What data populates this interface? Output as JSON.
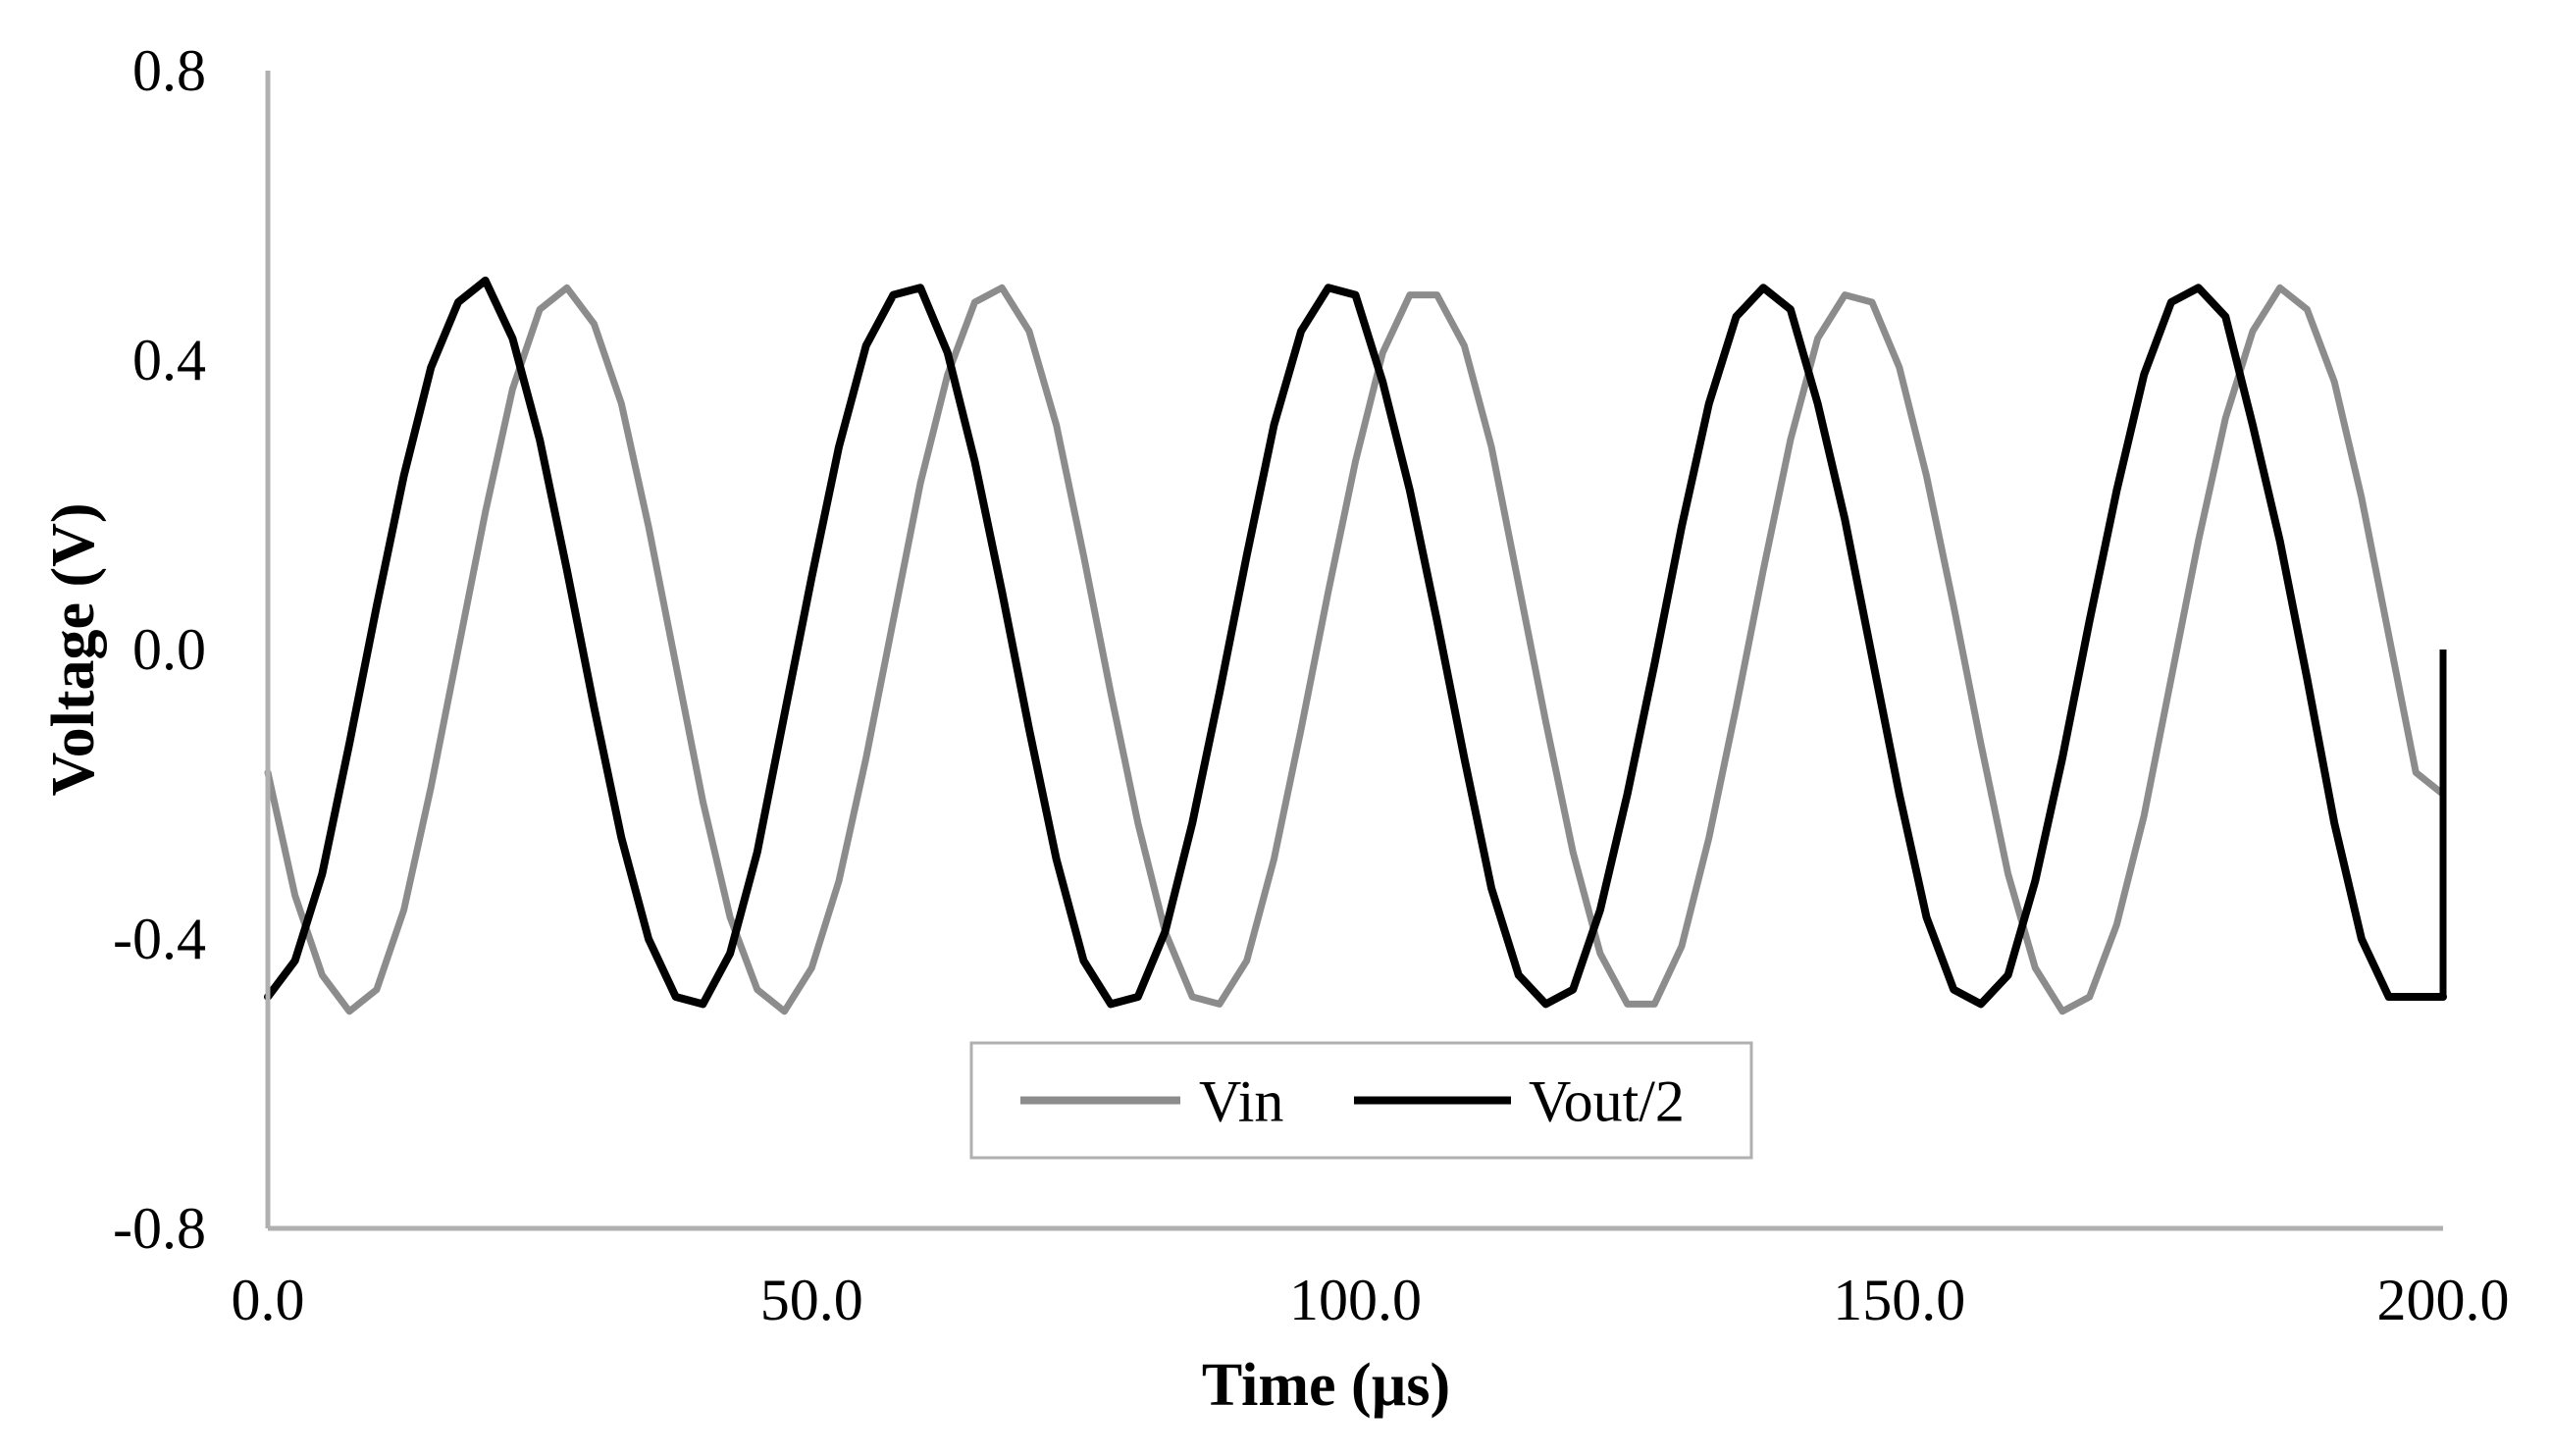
{
  "chart_data": {
    "type": "line",
    "title": "",
    "xlabel": "Time (µs)",
    "ylabel": "Voltage (V)",
    "xlim": [
      0,
      200
    ],
    "ylim": [
      -0.8,
      0.8
    ],
    "x_ticks": [
      0,
      50,
      100,
      150,
      200
    ],
    "x_tick_labels": [
      "0.0",
      "50.0",
      "100.0",
      "150.0",
      "200.0"
    ],
    "y_ticks": [
      -0.8,
      -0.4,
      0.0,
      0.4,
      0.8
    ],
    "y_tick_labels": [
      "-0.8",
      "-0.4",
      "0.0",
      "0.4",
      "0.8"
    ],
    "grid": false,
    "legend_position": "bottom-center",
    "x": [
      0,
      2.5,
      5,
      7.5,
      10,
      12.5,
      15,
      17.5,
      20,
      22.5,
      25,
      27.5,
      30,
      32.5,
      35,
      37.5,
      40,
      42.5,
      45,
      47.5,
      50,
      52.5,
      55,
      57.5,
      60,
      62.5,
      65,
      67.5,
      70,
      72.5,
      75,
      77.5,
      80,
      82.5,
      85,
      87.5,
      90,
      92.5,
      95,
      97.5,
      100,
      102.5,
      105,
      107.5,
      110,
      112.5,
      115,
      117.5,
      120,
      122.5,
      125,
      127.5,
      130,
      132.5,
      135,
      137.5,
      140,
      142.5,
      145,
      147.5,
      150,
      152.5,
      155,
      157.5,
      160,
      162.5,
      165,
      167.5,
      170,
      172.5,
      175,
      177.5,
      180,
      182.5,
      185,
      187.5,
      190,
      192.5,
      195,
      197.5,
      200
    ],
    "series": [
      {
        "name": "Vin",
        "color": "#8c8c8c",
        "values": [
          -0.17,
          -0.34,
          -0.45,
          -0.5,
          -0.47,
          -0.36,
          -0.19,
          0.0,
          0.19,
          0.36,
          0.47,
          0.5,
          0.45,
          0.34,
          0.17,
          -0.02,
          -0.21,
          -0.37,
          -0.47,
          -0.5,
          -0.44,
          -0.32,
          -0.15,
          0.04,
          0.23,
          0.38,
          0.48,
          0.5,
          0.44,
          0.31,
          0.13,
          -0.06,
          -0.24,
          -0.39,
          -0.48,
          -0.49,
          -0.43,
          -0.29,
          -0.11,
          0.08,
          0.26,
          0.41,
          0.49,
          0.49,
          0.42,
          0.28,
          0.09,
          -0.1,
          -0.28,
          -0.42,
          -0.49,
          -0.49,
          -0.41,
          -0.26,
          -0.08,
          0.11,
          0.29,
          0.43,
          0.49,
          0.48,
          0.39,
          0.24,
          0.06,
          -0.13,
          -0.31,
          -0.44,
          -0.5,
          -0.48,
          -0.38,
          -0.23,
          -0.04,
          0.15,
          0.32,
          0.44,
          0.5,
          0.47,
          0.37,
          0.21,
          0.02,
          -0.17,
          -0.2
        ]
      },
      {
        "name": "Vout/2",
        "color": "#000000",
        "values": [
          -0.48,
          -0.43,
          -0.31,
          -0.13,
          0.06,
          0.24,
          0.39,
          0.48,
          0.51,
          0.43,
          0.29,
          0.11,
          -0.08,
          -0.26,
          -0.4,
          -0.48,
          -0.49,
          -0.42,
          -0.28,
          -0.09,
          0.1,
          0.28,
          0.42,
          0.49,
          0.5,
          0.41,
          0.26,
          0.08,
          -0.11,
          -0.29,
          -0.43,
          -0.49,
          -0.48,
          -0.39,
          -0.24,
          -0.06,
          0.13,
          0.31,
          0.44,
          0.5,
          0.49,
          0.37,
          0.22,
          0.04,
          -0.15,
          -0.33,
          -0.45,
          -0.49,
          -0.47,
          -0.36,
          -0.2,
          -0.02,
          0.17,
          0.34,
          0.46,
          0.5,
          0.47,
          0.34,
          0.18,
          -0.01,
          -0.2,
          -0.37,
          -0.47,
          -0.49,
          -0.45,
          -0.32,
          -0.15,
          0.04,
          0.22,
          0.38,
          0.48,
          0.5,
          0.46,
          0.31,
          0.15,
          -0.04,
          -0.24,
          -0.4,
          -0.48,
          -0.48,
          -0.48
        ]
      }
    ]
  }
}
